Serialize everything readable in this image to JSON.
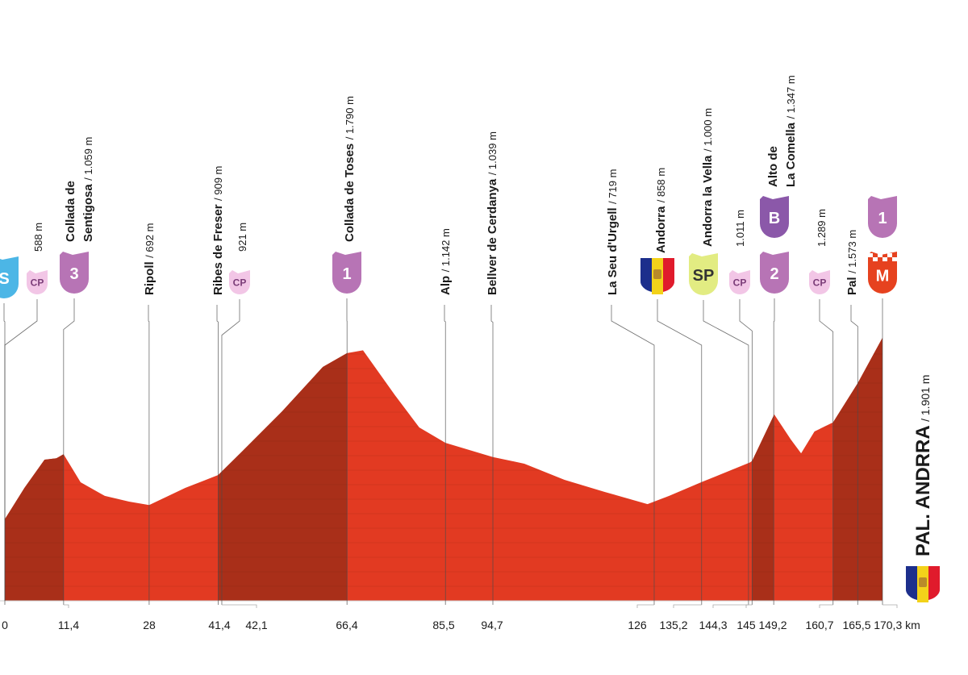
{
  "chart_data": {
    "type": "area",
    "colors": {
      "area": "#e23a22",
      "climb": "#a92f19",
      "leader": "#4a4a4a"
    },
    "xlim": [
      0,
      170.3
    ],
    "ylim": [
      0,
      1900
    ],
    "profile": {
      "x": [
        0,
        3.8,
        7.7,
        10,
        11.4,
        14.7,
        19.4,
        24.1,
        28,
        35,
        41.4,
        46,
        53.8,
        61.7,
        66.4,
        69.5,
        75.7,
        80.4,
        85.5,
        94.7,
        100.8,
        108.6,
        116.4,
        124.7,
        128.9,
        135.2,
        144.6,
        145,
        149.3,
        152.5,
        154.5,
        157.1,
        160.7,
        165.5,
        170.3
      ],
      "values": [
        590,
        816,
        1020,
        1030,
        1059,
        857,
        758,
        717,
        692,
        816,
        909,
        1078,
        1369,
        1690,
        1790,
        1810,
        1486,
        1253,
        1142,
        1039,
        991,
        874,
        787,
        699,
        758,
        858,
        1000,
        1011,
        1347,
        1166,
        1066,
        1224,
        1289,
        1573,
        1901
      ]
    },
    "climbs": [
      [
        0,
        11.4
      ],
      [
        41.4,
        66.4
      ],
      [
        145,
        149.2
      ],
      [
        160.7,
        170.3
      ]
    ],
    "xticks": [
      0,
      {
        "value": 11.4,
        "label": "11,4"
      },
      28,
      {
        "value": 41.4,
        "label": "41,4"
      },
      {
        "value": 42.1,
        "label": "42,1"
      },
      {
        "value": 66.4,
        "label": "66,4"
      },
      {
        "value": 85.5,
        "label": "85,5"
      },
      {
        "value": 94.7,
        "label": "94,7"
      },
      126,
      {
        "value": 135.2,
        "label": "135,2"
      },
      {
        "value": 144.3,
        "label": "144,3"
      },
      145,
      {
        "value": 149.2,
        "label": "149,2"
      },
      {
        "value": 160.7,
        "label": "160,7"
      },
      {
        "value": 165.5,
        "label": "165,5"
      },
      {
        "value": 170.3,
        "label": "170,3 km"
      }
    ],
    "badge_styles": {
      "S": [
        "#4cb6e6",
        "#ffffff"
      ],
      "CP": [
        "#f2c6e6",
        "#7a3c78"
      ],
      "1": [
        "#b774b5",
        "#ffffff"
      ],
      "2": [
        "#b774b5",
        "#ffffff"
      ],
      "3": [
        "#b774b5",
        "#ffffff"
      ],
      "SP": [
        "#e2ec82",
        "#333333"
      ],
      "B": [
        "#8b58a9",
        "#ffffff"
      ],
      "M": [
        "#e6421f",
        "#ffffff"
      ]
    },
    "waypoints": [
      {
        "km": 0,
        "badges": [
          "S"
        ]
      },
      {
        "km": 0,
        "elevation": "588 m",
        "badges": [
          "CP"
        ]
      },
      {
        "km": 11.4,
        "name": [
          "Collada de",
          "Sentigosa"
        ],
        "elevation": "/ 1.059 m",
        "badges": [
          "3"
        ]
      },
      {
        "km": 28,
        "name": [
          "Ripoll"
        ],
        "elevation": "/ 692 m"
      },
      {
        "km": 41.4,
        "name": [
          "Ribes de Freser"
        ],
        "elevation": "/ 909 m"
      },
      {
        "km": 42.1,
        "elevation": "921 m",
        "badges": [
          "CP"
        ]
      },
      {
        "km": 66.4,
        "name": [
          "Collada de Toses"
        ],
        "elevation": "/ 1.790 m",
        "badges": [
          "1"
        ]
      },
      {
        "km": 85.5,
        "name": [
          "Alp"
        ],
        "elevation": "/ 1.142 m"
      },
      {
        "km": 94.7,
        "name": [
          "Bellver de Cerdanya"
        ],
        "elevation": "/ 1.039 m"
      },
      {
        "km": 126,
        "name": [
          "La Seu d'Urgell"
        ],
        "elevation": "/ 719 m"
      },
      {
        "km": 135.2,
        "name": [
          "Andorra"
        ],
        "elevation": "/ 858 m",
        "flag": true
      },
      {
        "km": 144.3,
        "name": [
          "Andorra la Vella"
        ],
        "elevation": "/ 1.000 m",
        "badges": [
          "SP"
        ]
      },
      {
        "km": 145,
        "elevation": "1.011 m",
        "badges": [
          "CP"
        ]
      },
      {
        "km": 149.2,
        "name": [
          "Alto de",
          "La Comella"
        ],
        "elevation": "/ 1.347 m",
        "badges": [
          "B",
          "2"
        ]
      },
      {
        "km": 160.7,
        "elevation": "1.289 m",
        "badges": [
          "CP"
        ]
      },
      {
        "km": 165.5,
        "name": [
          "Pal"
        ],
        "elevation": "/ 1.573 m"
      },
      {
        "km": 170.3,
        "badges": [
          "1",
          "M"
        ]
      }
    ],
    "finish": {
      "name": "PAL. ANDRRA",
      "elevation": "/ 1.901 m",
      "flag": true
    }
  }
}
